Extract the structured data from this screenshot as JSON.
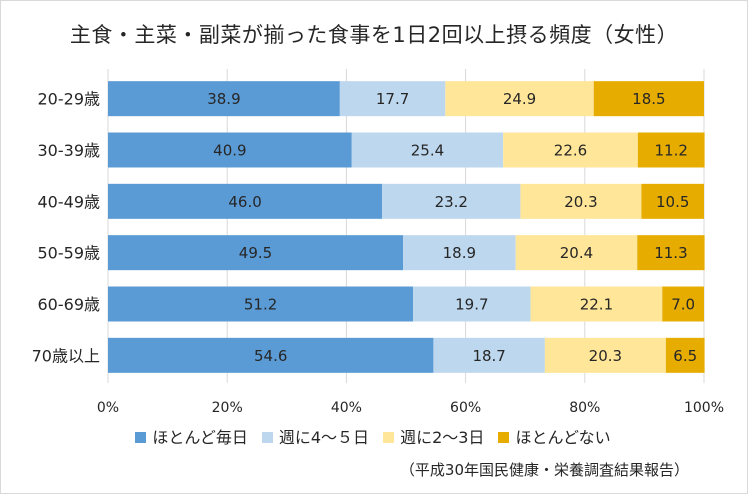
{
  "chart_data": {
    "type": "bar",
    "orientation": "horizontal",
    "stacked": true,
    "title": "主食・主菜・副菜が揃った食事を1日2回以上摂る頻度（女性）",
    "categories": [
      "20-29歳",
      "30-39歳",
      "40-49歳",
      "50-59歳",
      "60-69歳",
      "70歳以上"
    ],
    "series": [
      {
        "name": "ほとんど毎日",
        "color": "#5b9bd5",
        "values": [
          "38.9",
          "40.9",
          "46.0",
          "49.5",
          "51.2",
          "54.6"
        ]
      },
      {
        "name": "週に4～５日",
        "color": "#bdd7ee",
        "values": [
          "17.7",
          "25.4",
          "23.2",
          "18.9",
          "19.7",
          "18.7"
        ]
      },
      {
        "name": "週に2～3日",
        "color": "#ffe699",
        "values": [
          "24.9",
          "22.6",
          "20.3",
          "20.4",
          "22.1",
          "20.3"
        ]
      },
      {
        "name": "ほとんどない",
        "color": "#e6ac00",
        "values": [
          "18.5",
          "11.2",
          "10.5",
          "11.3",
          "7.0",
          "6.5"
        ]
      }
    ],
    "xlim": [
      0,
      100
    ],
    "xticks": [
      "0%",
      "20%",
      "40%",
      "60%",
      "80%",
      "100%"
    ],
    "grid": true,
    "legend_position": "bottom",
    "source": "（平成30年国民健康・栄養調査結果報告）"
  }
}
